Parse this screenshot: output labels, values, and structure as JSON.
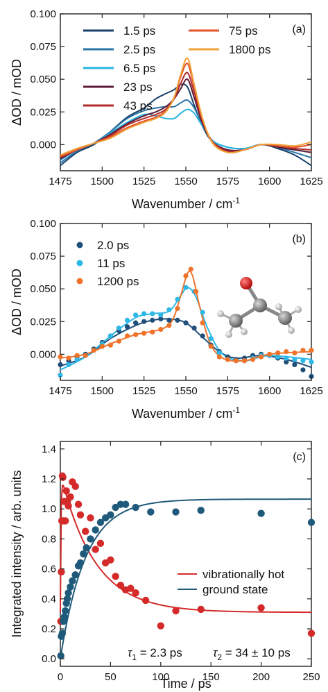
{
  "chart_data": [
    {
      "type": "line",
      "panel_label": "(a)",
      "xlabel": "Wavenumber / cm",
      "xlabel_sup": "-1",
      "ylabel": "ΔOD / mOD",
      "xlim": [
        1475,
        1625
      ],
      "ylim": [
        -0.02,
        0.1
      ],
      "xticks": [
        "1475",
        "1500",
        "1525",
        "1550",
        "1575",
        "1600",
        "1625"
      ],
      "yticks": [
        "0.000",
        "0.025",
        "0.050",
        "0.075",
        "0.100"
      ],
      "legend_placement": "top-left, two columns",
      "x": [
        1475,
        1485,
        1495,
        1505,
        1515,
        1525,
        1532,
        1538,
        1543,
        1547,
        1551,
        1555,
        1560,
        1566,
        1575,
        1585,
        1595,
        1605,
        1615,
        1625
      ],
      "series": [
        {
          "name": "1.5 ps",
          "color": "#173f68",
          "values": [
            -0.016,
            -0.006,
            0.0,
            0.01,
            0.021,
            0.028,
            0.035,
            0.039,
            0.042,
            0.046,
            0.044,
            0.03,
            0.014,
            0.002,
            -0.004,
            -0.004,
            0.0,
            -0.003,
            -0.008,
            -0.016
          ]
        },
        {
          "name": "2.5 ps",
          "color": "#2a74a6",
          "values": [
            -0.014,
            -0.005,
            0.001,
            0.01,
            0.02,
            0.026,
            0.028,
            0.029,
            0.029,
            0.032,
            0.034,
            0.028,
            0.015,
            0.003,
            -0.002,
            -0.003,
            0.0,
            -0.002,
            -0.006,
            -0.01
          ]
        },
        {
          "name": "6.5 ps",
          "color": "#29b4df",
          "values": [
            -0.012,
            -0.004,
            0.001,
            0.009,
            0.017,
            0.023,
            0.022,
            0.02,
            0.02,
            0.024,
            0.027,
            0.024,
            0.014,
            0.003,
            -0.002,
            -0.003,
            0.0,
            -0.002,
            -0.004,
            -0.006
          ]
        },
        {
          "name": "23 ps",
          "color": "#5e1c38",
          "values": [
            -0.011,
            -0.004,
            0.001,
            0.008,
            0.016,
            0.022,
            0.025,
            0.029,
            0.035,
            0.043,
            0.05,
            0.036,
            0.016,
            0.002,
            -0.004,
            -0.004,
            0.0,
            -0.002,
            -0.004,
            -0.006
          ]
        },
        {
          "name": "43 ps",
          "color": "#b02a2a",
          "values": [
            -0.01,
            -0.004,
            0.001,
            0.007,
            0.015,
            0.02,
            0.023,
            0.027,
            0.035,
            0.047,
            0.055,
            0.04,
            0.018,
            0.002,
            -0.005,
            -0.004,
            0.0,
            -0.001,
            -0.003,
            -0.004
          ]
        },
        {
          "name": "75 ps",
          "color": "#e5532b",
          "values": [
            -0.009,
            -0.004,
            0.001,
            0.006,
            0.013,
            0.018,
            0.021,
            0.026,
            0.036,
            0.052,
            0.062,
            0.044,
            0.019,
            0.002,
            -0.006,
            -0.004,
            0.0,
            -0.001,
            -0.002,
            0.0
          ]
        },
        {
          "name": "1800 ps",
          "color": "#f0a038",
          "values": [
            -0.008,
            -0.003,
            0.001,
            0.005,
            0.012,
            0.017,
            0.02,
            0.025,
            0.036,
            0.054,
            0.066,
            0.046,
            0.02,
            0.001,
            -0.006,
            -0.004,
            0.0,
            0.0,
            -0.001,
            0.002
          ]
        }
      ]
    },
    {
      "type": "scatter",
      "panel_label": "(b)",
      "xlabel": "Wavenumber / cm",
      "xlabel_sup": "-1",
      "ylabel": "ΔOD / mOD",
      "xlim": [
        1475,
        1625
      ],
      "ylim": [
        -0.02,
        0.1
      ],
      "xticks": [
        "1475",
        "1500",
        "1525",
        "1550",
        "1575",
        "1600",
        "1625"
      ],
      "yticks": [
        "0.000",
        "0.025",
        "0.050",
        "0.075",
        "0.100"
      ],
      "legend_placement": "top-left",
      "series": [
        {
          "name": "2.0 ps",
          "color": "#1f4e79",
          "x": [
            1475,
            1480,
            1485,
            1490,
            1495,
            1500,
            1505,
            1510,
            1515,
            1520,
            1525,
            1530,
            1535,
            1540,
            1545,
            1550,
            1555,
            1560,
            1565,
            1570,
            1575,
            1580,
            1585,
            1590,
            1595,
            1600,
            1605,
            1610,
            1615,
            1620,
            1625
          ],
          "y": [
            -0.008,
            -0.005,
            -0.002,
            0.0,
            0.004,
            0.009,
            0.014,
            0.018,
            0.021,
            0.024,
            0.025,
            0.026,
            0.027,
            0.026,
            0.026,
            0.024,
            0.02,
            0.014,
            0.007,
            0.002,
            -0.002,
            -0.004,
            -0.003,
            -0.001,
            0.0,
            -0.001,
            -0.003,
            -0.006,
            -0.008,
            -0.012,
            -0.017
          ],
          "fit": [
            [
              1475,
              -0.009
            ],
            [
              1490,
              -0.002
            ],
            [
              1505,
              0.012
            ],
            [
              1520,
              0.022
            ],
            [
              1530,
              0.026
            ],
            [
              1540,
              0.027
            ],
            [
              1550,
              0.024
            ],
            [
              1560,
              0.013
            ],
            [
              1570,
              0.002
            ],
            [
              1580,
              -0.003
            ],
            [
              1595,
              -0.001
            ],
            [
              1610,
              -0.004
            ],
            [
              1625,
              -0.01
            ]
          ]
        },
        {
          "name": "11 ps",
          "color": "#2fb8e6",
          "x": [
            1475,
            1480,
            1485,
            1490,
            1495,
            1500,
            1505,
            1510,
            1515,
            1520,
            1525,
            1530,
            1535,
            1540,
            1545,
            1550,
            1555,
            1560,
            1565,
            1570,
            1575,
            1580,
            1585,
            1590,
            1595,
            1600,
            1605,
            1610,
            1615,
            1620,
            1625
          ],
          "y": [
            -0.016,
            -0.008,
            -0.004,
            -0.001,
            0.003,
            0.008,
            0.014,
            0.02,
            0.026,
            0.03,
            0.031,
            0.031,
            0.03,
            0.034,
            0.042,
            0.051,
            0.048,
            0.032,
            0.012,
            0.001,
            -0.004,
            -0.005,
            -0.005,
            -0.003,
            -0.001,
            -0.001,
            -0.002,
            -0.003,
            -0.004,
            -0.005,
            -0.006
          ],
          "fit": [
            [
              1475,
              -0.012
            ],
            [
              1490,
              -0.002
            ],
            [
              1505,
              0.014
            ],
            [
              1520,
              0.028
            ],
            [
              1530,
              0.031
            ],
            [
              1540,
              0.033
            ],
            [
              1547,
              0.045
            ],
            [
              1551,
              0.051
            ],
            [
              1556,
              0.044
            ],
            [
              1563,
              0.02
            ],
            [
              1572,
              0.0
            ],
            [
              1585,
              -0.005
            ],
            [
              1600,
              -0.001
            ],
            [
              1625,
              -0.004
            ]
          ]
        },
        {
          "name": "1200 ps",
          "color": "#f0732a",
          "x": [
            1475,
            1480,
            1485,
            1490,
            1495,
            1500,
            1505,
            1510,
            1515,
            1520,
            1525,
            1530,
            1535,
            1540,
            1545,
            1550,
            1553,
            1556,
            1560,
            1565,
            1570,
            1575,
            1580,
            1585,
            1590,
            1595,
            1600,
            1605,
            1610,
            1615,
            1620,
            1625
          ],
          "y": [
            -0.002,
            -0.003,
            -0.001,
            -0.001,
            0.003,
            0.006,
            0.007,
            0.01,
            0.014,
            0.015,
            0.016,
            0.017,
            0.019,
            0.022,
            0.035,
            0.06,
            0.065,
            0.048,
            0.024,
            0.006,
            -0.002,
            -0.004,
            -0.005,
            -0.005,
            -0.004,
            -0.002,
            0.0,
            0.001,
            0.002,
            0.001,
            0.003,
            0.003
          ],
          "fit": [
            [
              1475,
              -0.003
            ],
            [
              1490,
              0.0
            ],
            [
              1505,
              0.008
            ],
            [
              1520,
              0.015
            ],
            [
              1535,
              0.019
            ],
            [
              1542,
              0.026
            ],
            [
              1547,
              0.045
            ],
            [
              1551,
              0.062
            ],
            [
              1554,
              0.06
            ],
            [
              1558,
              0.038
            ],
            [
              1564,
              0.01
            ],
            [
              1572,
              -0.003
            ],
            [
              1585,
              -0.005
            ],
            [
              1600,
              0.0
            ],
            [
              1625,
              0.002
            ]
          ]
        }
      ]
    },
    {
      "type": "scatter",
      "panel_label": "(c)",
      "xlabel": "Time / ps",
      "ylabel": "Integrated intensity / arb. units",
      "xlim": [
        0,
        250
      ],
      "ylim": [
        -0.05,
        1.45
      ],
      "xticks": [
        "0",
        "50",
        "100",
        "150",
        "200",
        "250"
      ],
      "yticks": [
        "0.0",
        "0.2",
        "0.4",
        "0.6",
        "0.8",
        "1.0",
        "1.2",
        "1.4"
      ],
      "legend_placement": "center-right",
      "series": [
        {
          "name": "vibrationally hot",
          "color": "#d42a2a",
          "x": [
            0.5,
            1,
            1.5,
            2,
            2.5,
            3,
            4,
            5,
            6,
            7,
            8,
            10,
            12,
            15,
            18,
            20,
            25,
            30,
            35,
            40,
            45,
            50,
            55,
            60,
            65,
            70,
            75,
            85,
            100,
            115,
            140,
            200,
            250
          ],
          "y": [
            0.25,
            0.58,
            0.92,
            1.22,
            1.21,
            0.92,
            1.05,
            0.92,
            1.12,
            1.05,
            1.02,
            1.08,
            1.18,
            1.15,
            1.03,
            0.96,
            0.85,
            0.94,
            0.73,
            0.77,
            0.64,
            0.66,
            0.55,
            0.49,
            0.46,
            0.47,
            0.44,
            0.39,
            0.22,
            0.32,
            0.33,
            0.34,
            0.17
          ]
        },
        {
          "name": "ground state",
          "color": "#1f5a7a",
          "x": [
            0.5,
            1,
            2,
            3,
            4,
            5,
            6,
            7,
            8,
            10,
            12,
            15,
            18,
            20,
            23,
            26,
            30,
            35,
            40,
            45,
            50,
            55,
            60,
            65,
            75,
            90,
            115,
            140,
            200,
            250
          ],
          "y": [
            0.02,
            0.15,
            0.17,
            0.25,
            0.28,
            0.32,
            0.37,
            0.4,
            0.44,
            0.48,
            0.52,
            0.56,
            0.62,
            0.64,
            0.7,
            0.74,
            0.8,
            0.86,
            0.91,
            0.94,
            0.96,
            1.01,
            1.03,
            1.03,
            1.01,
            0.98,
            0.98,
            0.99,
            0.97,
            0.91
          ]
        }
      ],
      "annotation": {
        "tau1_symbol": "τ",
        "tau1_sub": "1",
        "tau1_text": " = 2.3 ps",
        "tau2_symbol": "τ",
        "tau2_sub": "2",
        "tau2_text": " = 34 ± 10 ps"
      }
    }
  ]
}
